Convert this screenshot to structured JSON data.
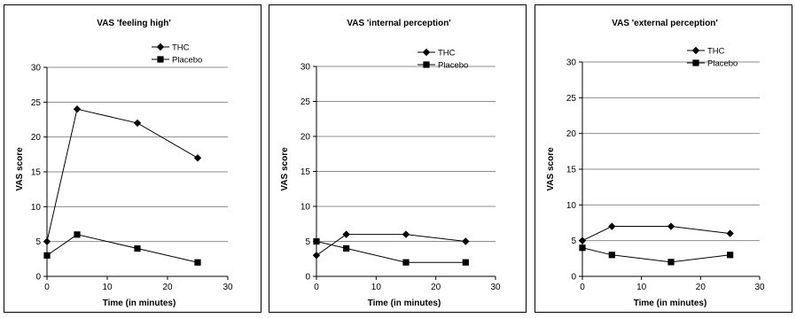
{
  "chart_data": [
    {
      "type": "line",
      "title": "VAS 'feeling high'",
      "xlabel": "Time (in minutes)",
      "ylabel": "VAS score",
      "xlim": [
        0,
        30
      ],
      "ylim": [
        0,
        30
      ],
      "xticks": [
        0,
        10,
        20,
        30
      ],
      "yticks": [
        0,
        5,
        10,
        15,
        20,
        25,
        30
      ],
      "grid": "horizontal",
      "legend_position": "top-right",
      "series": [
        {
          "name": "THC",
          "marker": "diamond",
          "x": [
            0,
            5,
            15,
            25
          ],
          "y": [
            5,
            24,
            22,
            17
          ]
        },
        {
          "name": "Placebo",
          "marker": "square",
          "x": [
            0,
            5,
            15,
            25
          ],
          "y": [
            3,
            6,
            4,
            2
          ]
        }
      ]
    },
    {
      "type": "line",
      "title": "VAS 'internal perception'",
      "xlabel": "Time (in minutes)",
      "ylabel": "VAS score",
      "xlim": [
        0,
        30
      ],
      "ylim": [
        0,
        30
      ],
      "xticks": [
        0,
        10,
        20,
        30
      ],
      "yticks": [
        0,
        5,
        10,
        15,
        20,
        25,
        30
      ],
      "grid": "horizontal",
      "legend_position": "top-right",
      "series": [
        {
          "name": "THC",
          "marker": "diamond",
          "x": [
            0,
            5,
            15,
            25
          ],
          "y": [
            3,
            6,
            6,
            5
          ]
        },
        {
          "name": "Placebo",
          "marker": "square",
          "x": [
            0,
            5,
            15,
            25
          ],
          "y": [
            5,
            4,
            2,
            2
          ]
        }
      ]
    },
    {
      "type": "line",
      "title": "VAS 'external perception'",
      "xlabel": "Time (in minutes)",
      "ylabel": "VAS score",
      "xlim": [
        0,
        30
      ],
      "ylim": [
        0,
        30
      ],
      "xticks": [
        0,
        10,
        20,
        30
      ],
      "yticks": [
        0,
        5,
        10,
        15,
        20,
        25,
        30
      ],
      "grid": "horizontal",
      "legend_position": "top-right",
      "series": [
        {
          "name": "THC",
          "marker": "diamond",
          "x": [
            0,
            5,
            15,
            25
          ],
          "y": [
            5,
            7,
            7,
            6
          ]
        },
        {
          "name": "Placebo",
          "marker": "square",
          "x": [
            0,
            5,
            15,
            25
          ],
          "y": [
            4,
            3,
            2,
            3
          ]
        }
      ]
    }
  ]
}
